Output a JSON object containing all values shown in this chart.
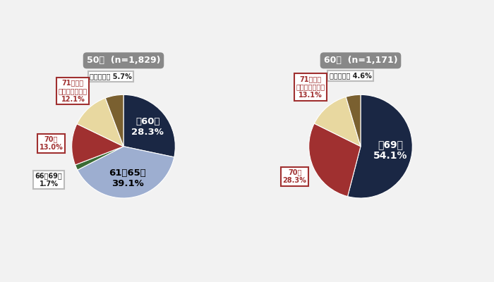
{
  "chart1": {
    "title": "50代",
    "subtitle": "n=1,829",
    "slices": [
      {
        "label": "〜60歳",
        "pct": 28.3,
        "color": "#1a2744"
      },
      {
        "label": "61〜65歳",
        "pct": 39.1,
        "color": "#9daed0"
      },
      {
        "label": "66〜69歳",
        "pct": 1.7,
        "color": "#3a6b35"
      },
      {
        "label": "70歳",
        "pct": 13.0,
        "color": "#a03030"
      },
      {
        "label": "71歳以上生涯働けるまで",
        "pct": 12.1,
        "color": "#e8d8a0"
      },
      {
        "label": "わからない",
        "pct": 5.7,
        "color": "#7a6030"
      }
    ],
    "inside_labels": [
      {
        "text": "〜60歳\n28.3%",
        "slice_idx": 0,
        "color": "white",
        "r": 0.6,
        "fontsize": 9.5
      },
      {
        "text": "61〜65歳\n39.1%",
        "slice_idx": 1,
        "color": "black",
        "r": 0.62,
        "fontsize": 9.5
      }
    ],
    "outside_labels": [
      {
        "text": "わからない 5.7%",
        "slice_idx": 5,
        "red": false,
        "r": 1.38,
        "ha": "center"
      },
      {
        "text": "71歳以上\n生涯働けるまで\n12.1%",
        "slice_idx": 4,
        "red": true,
        "r": 1.45,
        "ha": "center"
      },
      {
        "text": "70歳\n13.0%",
        "slice_idx": 3,
        "red": true,
        "r": 1.4,
        "ha": "center"
      },
      {
        "text": "66〜69歳\n1.7%",
        "slice_idx": 2,
        "red": false,
        "r": 1.58,
        "ha": "center"
      }
    ]
  },
  "chart2": {
    "title": "60代",
    "subtitle": "n=1,171",
    "slices": [
      {
        "label": "〜69歳",
        "pct": 54.1,
        "color": "#1a2744"
      },
      {
        "label": "70歳",
        "pct": 28.3,
        "color": "#a03030"
      },
      {
        "label": "71歳以上生涯働けるまで",
        "pct": 13.1,
        "color": "#e8d8a0"
      },
      {
        "label": "わからない",
        "pct": 4.6,
        "color": "#7a6030"
      }
    ],
    "inside_labels": [
      {
        "text": "〜69歳\n54.1%",
        "slice_idx": 0,
        "color": "white",
        "r": 0.58,
        "fontsize": 10
      }
    ],
    "outside_labels": [
      {
        "text": "わからない 4.6%",
        "slice_idx": 3,
        "red": false,
        "r": 1.38,
        "ha": "center"
      },
      {
        "text": "71歳以上\n生涯働けるまで\n13.1%",
        "slice_idx": 2,
        "red": true,
        "r": 1.5,
        "ha": "center"
      },
      {
        "text": "70歳\n28.3%",
        "slice_idx": 1,
        "red": true,
        "r": 1.4,
        "ha": "center"
      }
    ]
  },
  "bg_color": "#f2f2f2",
  "title_box_color": "#888888"
}
